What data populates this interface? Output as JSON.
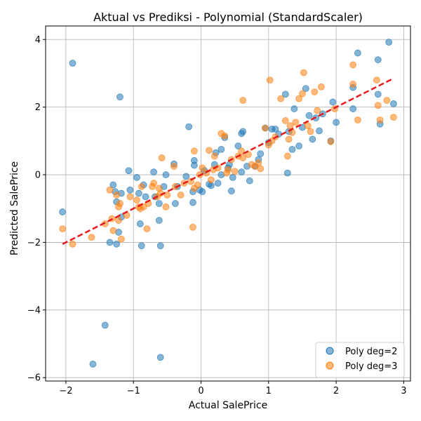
{
  "chart_data": {
    "type": "scatter",
    "title": "Aktual vs Prediksi - Polynomial (StandardScaler)",
    "xlabel": "Actual SalePrice",
    "ylabel": "Predicted SalePrice",
    "xlim": [
      -2.3,
      3.1
    ],
    "ylim": [
      -6.1,
      4.4
    ],
    "xticks": [
      -2,
      -1,
      0,
      1,
      2,
      3
    ],
    "yticks": [
      -6,
      -4,
      -2,
      0,
      2,
      4
    ],
    "xtick_labels": [
      "−2",
      "−1",
      "0",
      "1",
      "2",
      "3"
    ],
    "ytick_labels": [
      "−6",
      "−4",
      "−2",
      "0",
      "2",
      "4"
    ],
    "grid": true,
    "legend_position": "lower-right",
    "colors": {
      "series_1": "#1f77b4",
      "series_2": "#ff7f0e",
      "reference_line": "#e41a1c"
    },
    "reference_line": {
      "style": "dashed",
      "x": [
        -2.05,
        2.85
      ],
      "y": [
        -2.05,
        2.85
      ]
    },
    "series": [
      {
        "name": "Poly deg=2",
        "points": [
          [
            -2.05,
            -1.1
          ],
          [
            -1.9,
            3.3
          ],
          [
            -1.6,
            -5.6
          ],
          [
            -1.42,
            -4.45
          ],
          [
            -1.35,
            -2.0
          ],
          [
            -1.3,
            -0.3
          ],
          [
            -1.27,
            -0.5
          ],
          [
            -1.25,
            -0.8
          ],
          [
            -1.22,
            -1.7
          ],
          [
            -1.25,
            -2.05
          ],
          [
            -1.2,
            2.3
          ],
          [
            -1.18,
            -0.55
          ],
          [
            -1.18,
            -1.25
          ],
          [
            -1.07,
            0.12
          ],
          [
            -1.05,
            -0.45
          ],
          [
            -0.95,
            -0.08
          ],
          [
            -0.92,
            -0.55
          ],
          [
            -0.9,
            -1.45
          ],
          [
            -0.88,
            -2.1
          ],
          [
            -0.85,
            -0.3
          ],
          [
            -0.82,
            -0.65
          ],
          [
            -0.7,
            0.08
          ],
          [
            -0.68,
            -0.65
          ],
          [
            -0.62,
            -0.85
          ],
          [
            -0.62,
            -1.35
          ],
          [
            -0.6,
            -2.1
          ],
          [
            -0.6,
            -5.4
          ],
          [
            -0.55,
            -0.35
          ],
          [
            -0.52,
            0.0
          ],
          [
            -0.4,
            0.32
          ],
          [
            -0.38,
            -0.85
          ],
          [
            -0.35,
            -0.35
          ],
          [
            -0.22,
            -0.05
          ],
          [
            -0.18,
            1.42
          ],
          [
            -0.12,
            -0.5
          ],
          [
            -0.12,
            -0.82
          ],
          [
            -0.1,
            0.42
          ],
          [
            -0.1,
            0.28
          ],
          [
            -0.02,
            -0.45
          ],
          [
            0.02,
            -0.5
          ],
          [
            0.05,
            0.12
          ],
          [
            0.12,
            -0.28
          ],
          [
            0.15,
            -0.32
          ],
          [
            0.2,
            0.3
          ],
          [
            0.22,
            0.65
          ],
          [
            0.25,
            -0.25
          ],
          [
            0.3,
            0.75
          ],
          [
            0.3,
            0.0
          ],
          [
            0.35,
            1.1
          ],
          [
            0.4,
            0.2
          ],
          [
            0.42,
            0.3
          ],
          [
            0.45,
            -0.48
          ],
          [
            0.47,
            -0.08
          ],
          [
            0.55,
            0.85
          ],
          [
            0.6,
            1.22
          ],
          [
            0.62,
            1.28
          ],
          [
            0.6,
            0.08
          ],
          [
            0.68,
            0.25
          ],
          [
            0.72,
            -0.18
          ],
          [
            0.8,
            0.25
          ],
          [
            0.85,
            0.45
          ],
          [
            0.88,
            0.62
          ],
          [
            0.95,
            1.38
          ],
          [
            1.0,
            0.95
          ],
          [
            1.05,
            1.35
          ],
          [
            1.1,
            1.35
          ],
          [
            1.15,
            1.2
          ],
          [
            1.25,
            2.38
          ],
          [
            1.28,
            0.05
          ],
          [
            1.3,
            1.28
          ],
          [
            1.35,
            0.75
          ],
          [
            1.38,
            1.95
          ],
          [
            1.45,
            0.85
          ],
          [
            1.5,
            1.4
          ],
          [
            1.55,
            2.55
          ],
          [
            1.6,
            1.75
          ],
          [
            1.65,
            1.05
          ],
          [
            1.7,
            1.68
          ],
          [
            1.75,
            1.3
          ],
          [
            1.8,
            1.8
          ],
          [
            1.92,
            1.0
          ],
          [
            1.95,
            2.15
          ],
          [
            2.0,
            1.55
          ],
          [
            2.25,
            2.58
          ],
          [
            2.25,
            1.95
          ],
          [
            2.32,
            3.6
          ],
          [
            2.62,
            3.4
          ],
          [
            2.62,
            2.38
          ],
          [
            2.65,
            1.5
          ],
          [
            2.78,
            3.92
          ],
          [
            2.85,
            2.1
          ]
        ]
      },
      {
        "name": "Poly deg=3",
        "points": [
          [
            -2.05,
            -1.6
          ],
          [
            -1.9,
            -2.05
          ],
          [
            -1.62,
            -1.85
          ],
          [
            -1.42,
            -1.45
          ],
          [
            -1.35,
            -0.45
          ],
          [
            -1.32,
            -1.3
          ],
          [
            -1.3,
            -1.65
          ],
          [
            -1.25,
            -0.6
          ],
          [
            -1.22,
            -0.95
          ],
          [
            -1.22,
            -1.35
          ],
          [
            -1.2,
            -0.85
          ],
          [
            -1.18,
            -1.9
          ],
          [
            -1.1,
            -1.2
          ],
          [
            -1.05,
            -0.65
          ],
          [
            -0.95,
            -0.75
          ],
          [
            -0.92,
            -0.95
          ],
          [
            -0.9,
            -1.0
          ],
          [
            -0.88,
            -0.35
          ],
          [
            -0.85,
            -0.95
          ],
          [
            -0.8,
            -1.6
          ],
          [
            -0.78,
            -0.85
          ],
          [
            -0.72,
            -0.35
          ],
          [
            -0.7,
            -0.25
          ],
          [
            -0.65,
            -0.65
          ],
          [
            -0.62,
            -0.4
          ],
          [
            -0.6,
            -0.55
          ],
          [
            -0.58,
            0.5
          ],
          [
            -0.52,
            -0.95
          ],
          [
            -0.5,
            -0.6
          ],
          [
            -0.4,
            0.25
          ],
          [
            -0.38,
            -0.35
          ],
          [
            -0.3,
            -0.6
          ],
          [
            -0.25,
            -0.25
          ],
          [
            -0.15,
            -0.2
          ],
          [
            -0.12,
            -1.55
          ],
          [
            -0.1,
            -0.4
          ],
          [
            -0.1,
            0.7
          ],
          [
            -0.05,
            -0.3
          ],
          [
            -0.02,
            0.0
          ],
          [
            0.02,
            0.2
          ],
          [
            0.08,
            0.05
          ],
          [
            0.12,
            0.72
          ],
          [
            0.15,
            -0.15
          ],
          [
            0.18,
            0.15
          ],
          [
            0.2,
            0.55
          ],
          [
            0.25,
            0.2
          ],
          [
            0.3,
            1.22
          ],
          [
            0.35,
            1.15
          ],
          [
            0.38,
            0.05
          ],
          [
            0.4,
            0.15
          ],
          [
            0.45,
            0.45
          ],
          [
            0.5,
            0.1
          ],
          [
            0.55,
            0.55
          ],
          [
            0.6,
            0.7
          ],
          [
            0.62,
            0.5
          ],
          [
            0.62,
            2.2
          ],
          [
            0.7,
            0.6
          ],
          [
            0.75,
            0.3
          ],
          [
            0.8,
            0.25
          ],
          [
            0.85,
            0.35
          ],
          [
            0.88,
            0.18
          ],
          [
            0.95,
            1.38
          ],
          [
            1.0,
            0.88
          ],
          [
            1.02,
            2.8
          ],
          [
            1.05,
            1.0
          ],
          [
            1.1,
            1.12
          ],
          [
            1.18,
            2.25
          ],
          [
            1.25,
            1.6
          ],
          [
            1.28,
            0.55
          ],
          [
            1.3,
            1.05
          ],
          [
            1.32,
            1.45
          ],
          [
            1.35,
            1.25
          ],
          [
            1.4,
            1.55
          ],
          [
            1.45,
            2.25
          ],
          [
            1.5,
            2.4
          ],
          [
            1.52,
            3.02
          ],
          [
            1.58,
            1.45
          ],
          [
            1.62,
            1.28
          ],
          [
            1.68,
            2.45
          ],
          [
            1.72,
            1.9
          ],
          [
            1.78,
            2.6
          ],
          [
            1.92,
            0.98
          ],
          [
            1.98,
            1.95
          ],
          [
            2.25,
            3.25
          ],
          [
            2.25,
            2.68
          ],
          [
            2.32,
            1.62
          ],
          [
            2.6,
            2.8
          ],
          [
            2.62,
            2.05
          ],
          [
            2.65,
            1.62
          ],
          [
            2.75,
            2.2
          ],
          [
            2.85,
            1.7
          ]
        ]
      }
    ]
  }
}
